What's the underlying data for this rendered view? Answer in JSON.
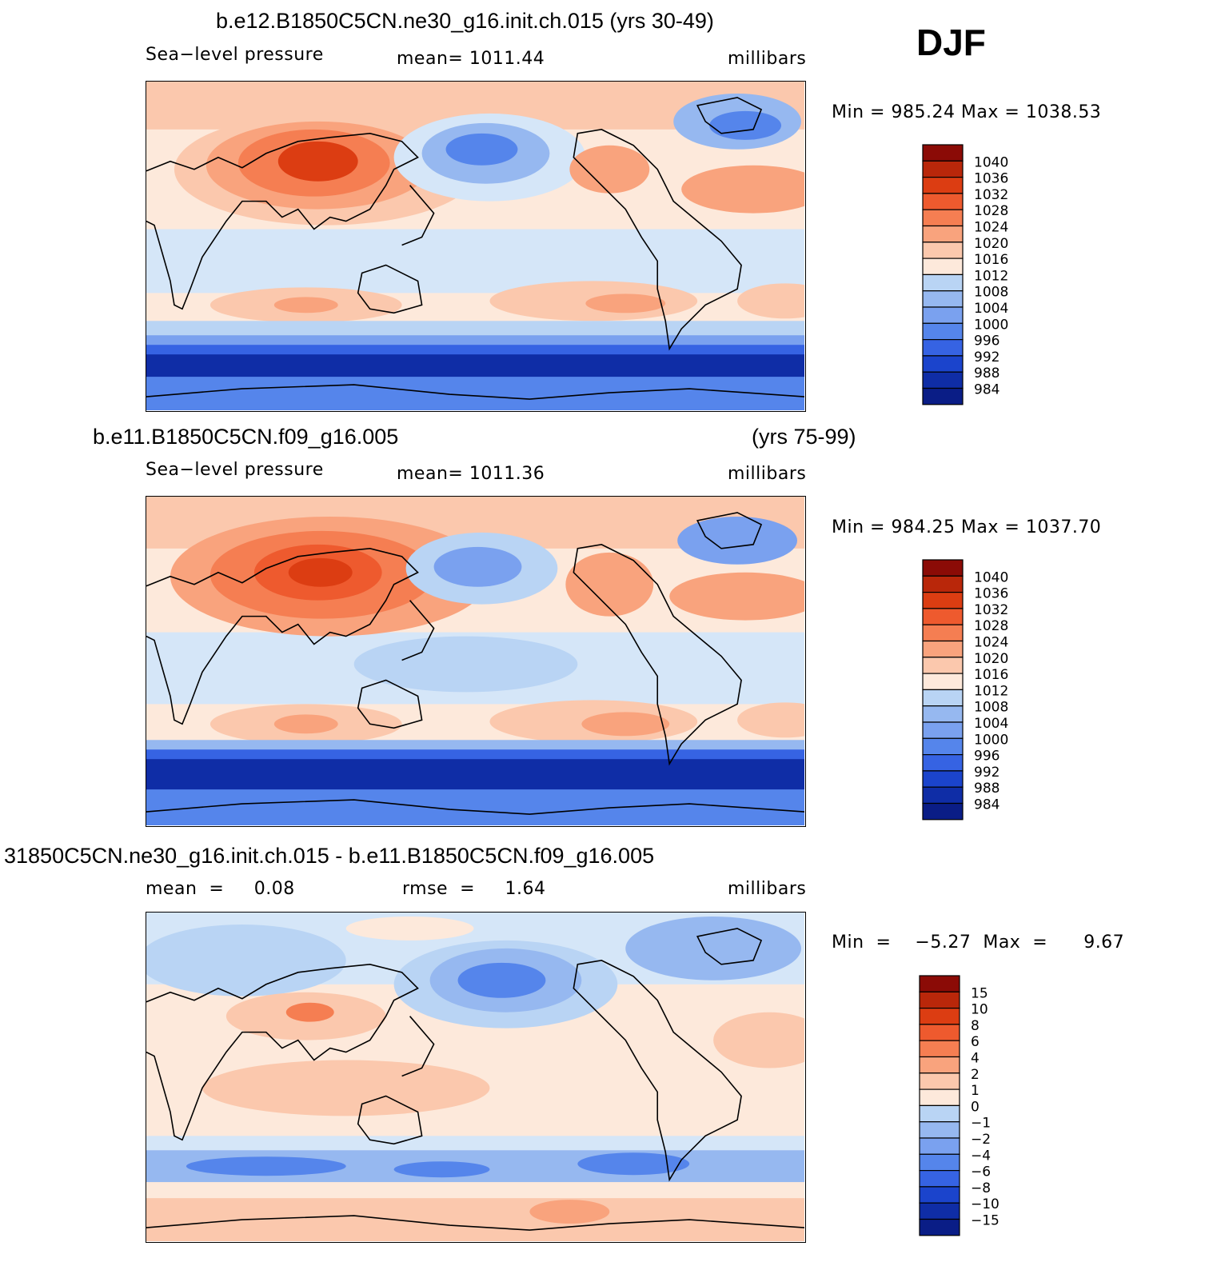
{
  "season": "DJF",
  "colors": {
    "reds": [
      "#fde9db",
      "#fbc8ad",
      "#f9a37d",
      "#f57e52",
      "#ee5a2e",
      "#dc3d12",
      "#b9270a",
      "#8b0b06"
    ],
    "blues": [
      "#d5e6f8",
      "#b9d4f4",
      "#96b8f0",
      "#7aa1ef",
      "#5585eb",
      "#3663e3",
      "#1b44cc",
      "#0f2da6",
      "#0a1d86"
    ],
    "coast": "#000000"
  },
  "panels": [
    {
      "title": "b.e12.B1850C5CN.ne30_g16.init.ch.015 (yrs 30-49)",
      "left_label": "Sea−level  pressure",
      "center_label": "mean=  1011.44",
      "units": "millibars",
      "minmax": "Min  =  985.24  Max  =  1038.53"
    },
    {
      "title_left": "b.e11.B1850C5CN.f09_g16.005",
      "title_right": "(yrs 75-99)",
      "left_label": "Sea−level  pressure",
      "center_label": "mean=  1011.36",
      "units": "millibars",
      "minmax": "Min  =  984.25  Max  =  1037.70"
    },
    {
      "title": "31850C5CN.ne30_g16.init.ch.015 - b.e11.B1850C5CN.f09_g16.005",
      "left_label": "mean  =     0.08",
      "center_label": "rmse  =     1.64",
      "units": "millibars",
      "minmax": "Min  =    −5.27  Max  =      9.67"
    }
  ],
  "chart_data": [
    {
      "type": "heatmap",
      "title": "b.e12.B1850C5CN.ne30_g16.init.ch.015 (yrs 30-49)",
      "variable": "Sea-level pressure",
      "units": "millibars",
      "mean": 1011.44,
      "min": 985.24,
      "max": 1038.53,
      "levels": [
        "1040",
        "1036",
        "1032",
        "1028",
        "1024",
        "1020",
        "1016",
        "1012",
        "1008",
        "1004",
        "1000",
        "996",
        "992",
        "988",
        "984"
      ]
    },
    {
      "type": "heatmap",
      "title": "b.e11.B1850C5CN.f09_g16.005 (yrs 75-99)",
      "variable": "Sea-level pressure",
      "units": "millibars",
      "mean": 1011.36,
      "min": 984.25,
      "max": 1037.7,
      "levels": [
        "1040",
        "1036",
        "1032",
        "1028",
        "1024",
        "1020",
        "1016",
        "1012",
        "1008",
        "1004",
        "1000",
        "996",
        "992",
        "988",
        "984"
      ]
    },
    {
      "type": "heatmap",
      "title": "31850C5CN.ne30_g16.init.ch.015 - b.e11.B1850C5CN.f09_g16.005",
      "units": "millibars",
      "mean": 0.08,
      "rmse": 1.64,
      "min": -5.27,
      "max": 9.67,
      "levels": [
        "15",
        "10",
        "8",
        "6",
        "4",
        "2",
        "1",
        "0",
        "−1",
        "−2",
        "−4",
        "−6",
        "−8",
        "−10",
        "−15"
      ]
    }
  ]
}
